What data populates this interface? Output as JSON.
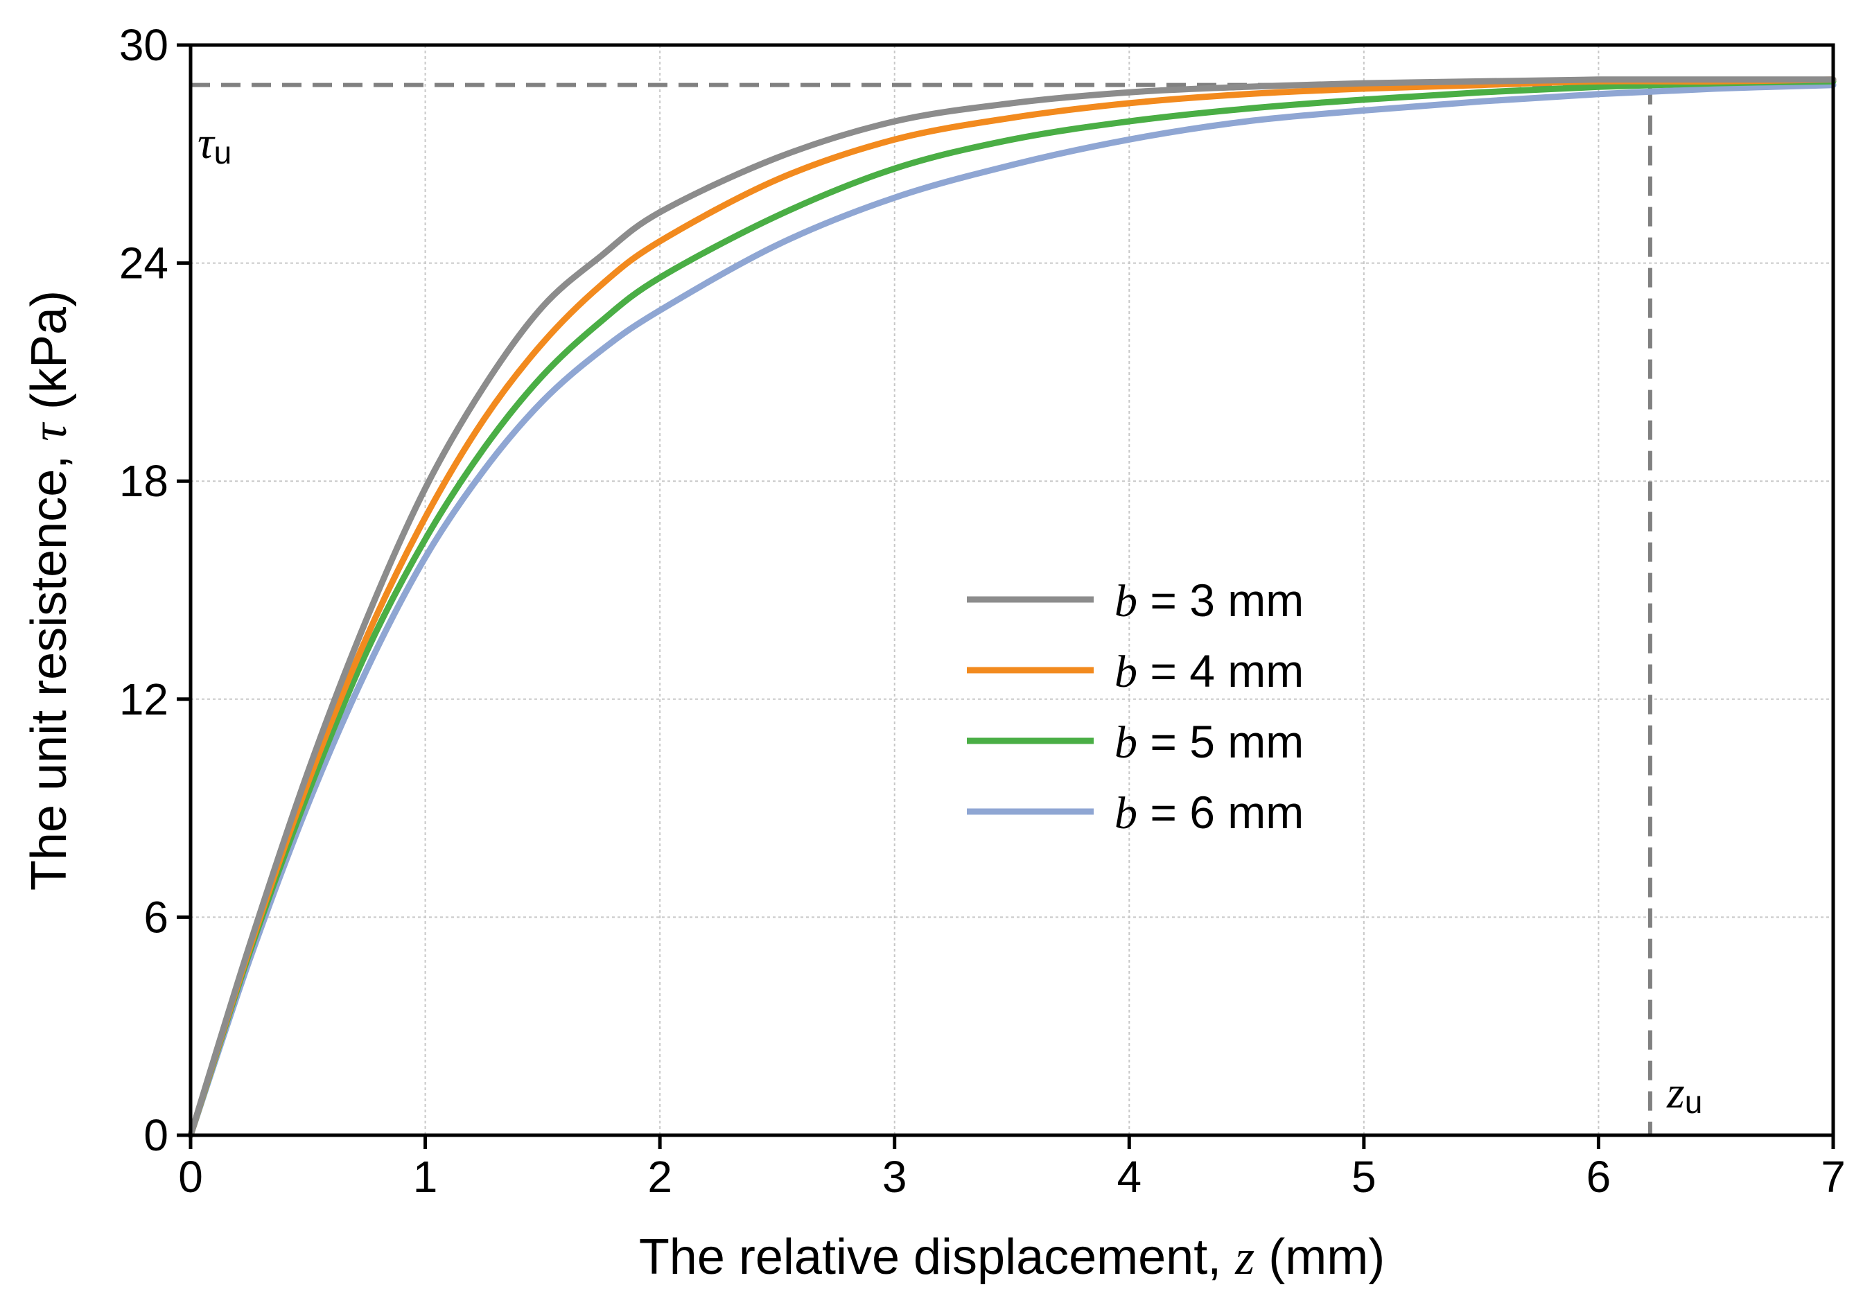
{
  "chart_data": {
    "type": "line",
    "title": "",
    "xlabel": {
      "prefix": "The relative displacement, ",
      "var": "z",
      "suffix": " (mm)"
    },
    "ylabel": {
      "prefix": "The unit resistence, ",
      "var": "τ",
      "suffix": " (kPa)"
    },
    "xlim": [
      0,
      7
    ],
    "ylim": [
      0,
      30
    ],
    "xticks": [
      0,
      1,
      2,
      3,
      4,
      5,
      6,
      7
    ],
    "yticks": [
      0,
      6,
      12,
      18,
      24,
      30
    ],
    "grid": true,
    "legend_position": "center-right",
    "x": [
      0,
      0.25,
      0.5,
      0.75,
      1,
      1.25,
      1.5,
      1.75,
      2,
      2.5,
      3,
      3.5,
      4,
      4.5,
      5,
      5.5,
      6,
      6.5,
      7
    ],
    "series": [
      {
        "name_var": "b",
        "name_rest": " = 3 mm",
        "color": "#8c8c8c",
        "values": [
          0,
          5.2,
          10.0,
          14.2,
          17.8,
          20.6,
          22.8,
          24.2,
          25.4,
          26.9,
          27.9,
          28.4,
          28.7,
          28.85,
          28.95,
          29.0,
          29.05,
          29.05,
          29.05
        ]
      },
      {
        "name_var": "b",
        "name_rest": " = 4 mm",
        "color": "#f28a1e",
        "values": [
          0,
          5.1,
          9.7,
          13.7,
          17.0,
          19.7,
          21.8,
          23.4,
          24.6,
          26.3,
          27.4,
          28.0,
          28.4,
          28.65,
          28.8,
          28.9,
          29.0,
          29.0,
          29.05
        ]
      },
      {
        "name_var": "b",
        "name_rest": " = 5 mm",
        "color": "#4aae45",
        "values": [
          0,
          5.0,
          9.4,
          13.3,
          16.4,
          18.9,
          20.9,
          22.4,
          23.6,
          25.3,
          26.6,
          27.4,
          27.9,
          28.25,
          28.5,
          28.7,
          28.85,
          28.95,
          29.0
        ]
      },
      {
        "name_var": "b",
        "name_rest": " = 6 mm",
        "color": "#8fa6d3",
        "values": [
          0,
          4.8,
          9.1,
          12.8,
          15.9,
          18.3,
          20.2,
          21.6,
          22.7,
          24.5,
          25.8,
          26.7,
          27.4,
          27.9,
          28.2,
          28.45,
          28.65,
          28.8,
          28.9
        ]
      }
    ],
    "annotations": {
      "tau_u": {
        "var": "τ",
        "sub": "u",
        "value": 28.9,
        "color": "#808080"
      },
      "z_u": {
        "var": "z",
        "sub": "u",
        "value": 6.22,
        "color": "#808080"
      }
    }
  }
}
